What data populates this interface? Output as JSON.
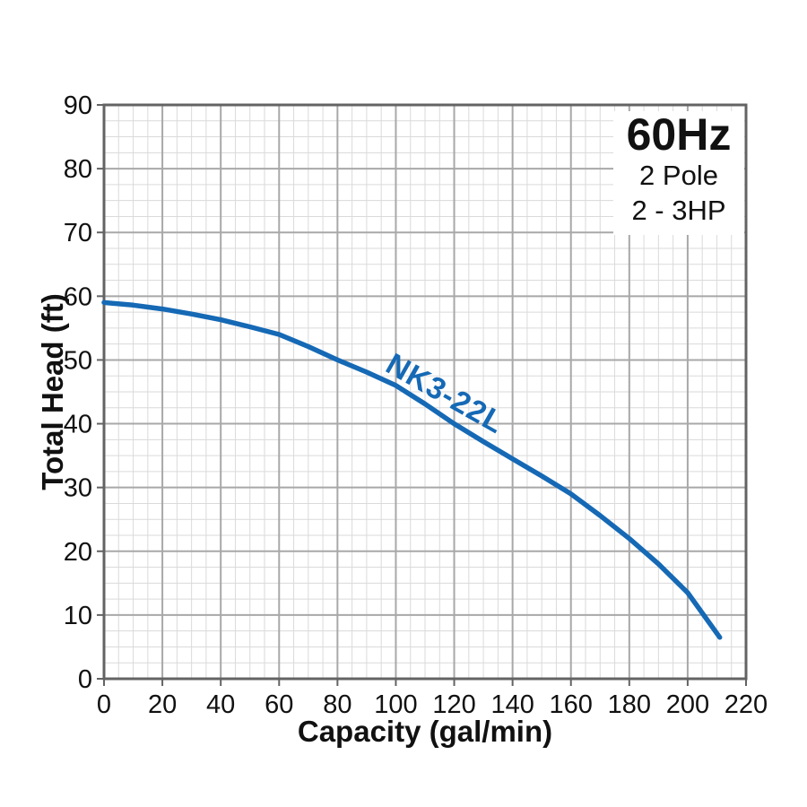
{
  "chart_data": {
    "type": "line",
    "title": "",
    "xlabel": "Capacity (gal/min)",
    "ylabel": "Total Head (ft)",
    "xlim": [
      0,
      220
    ],
    "ylim": [
      0,
      90
    ],
    "x_major_step": 20,
    "x_minor_step": 5,
    "y_major_step": 10,
    "y_minor_step": 2.5,
    "x_ticks": [
      0,
      20,
      40,
      60,
      80,
      100,
      120,
      140,
      160,
      180,
      200,
      220
    ],
    "y_ticks": [
      0,
      10,
      20,
      30,
      40,
      50,
      60,
      70,
      80,
      90
    ],
    "grid": "on",
    "series": [
      {
        "name": "NK3-22L",
        "x": [
          0,
          10,
          20,
          30,
          40,
          50,
          60,
          70,
          80,
          90,
          100,
          110,
          120,
          130,
          140,
          150,
          160,
          170,
          180,
          190,
          200,
          211
        ],
        "y": [
          59,
          58.6,
          58,
          57.2,
          56.3,
          55.2,
          54,
          52.1,
          50,
          48.1,
          46,
          43.1,
          40,
          37.2,
          34.5,
          31.8,
          29,
          25.6,
          22,
          18,
          13.5,
          6.5
        ]
      }
    ],
    "colors": {
      "curve": "#1569b5",
      "minor_grid": "#dadada",
      "major_grid": "#a8a8a8",
      "border": "#636363",
      "text": "#111111"
    }
  },
  "badge": {
    "frequency": "60Hz",
    "pole": "2 Pole",
    "power": "2 - 3HP"
  }
}
